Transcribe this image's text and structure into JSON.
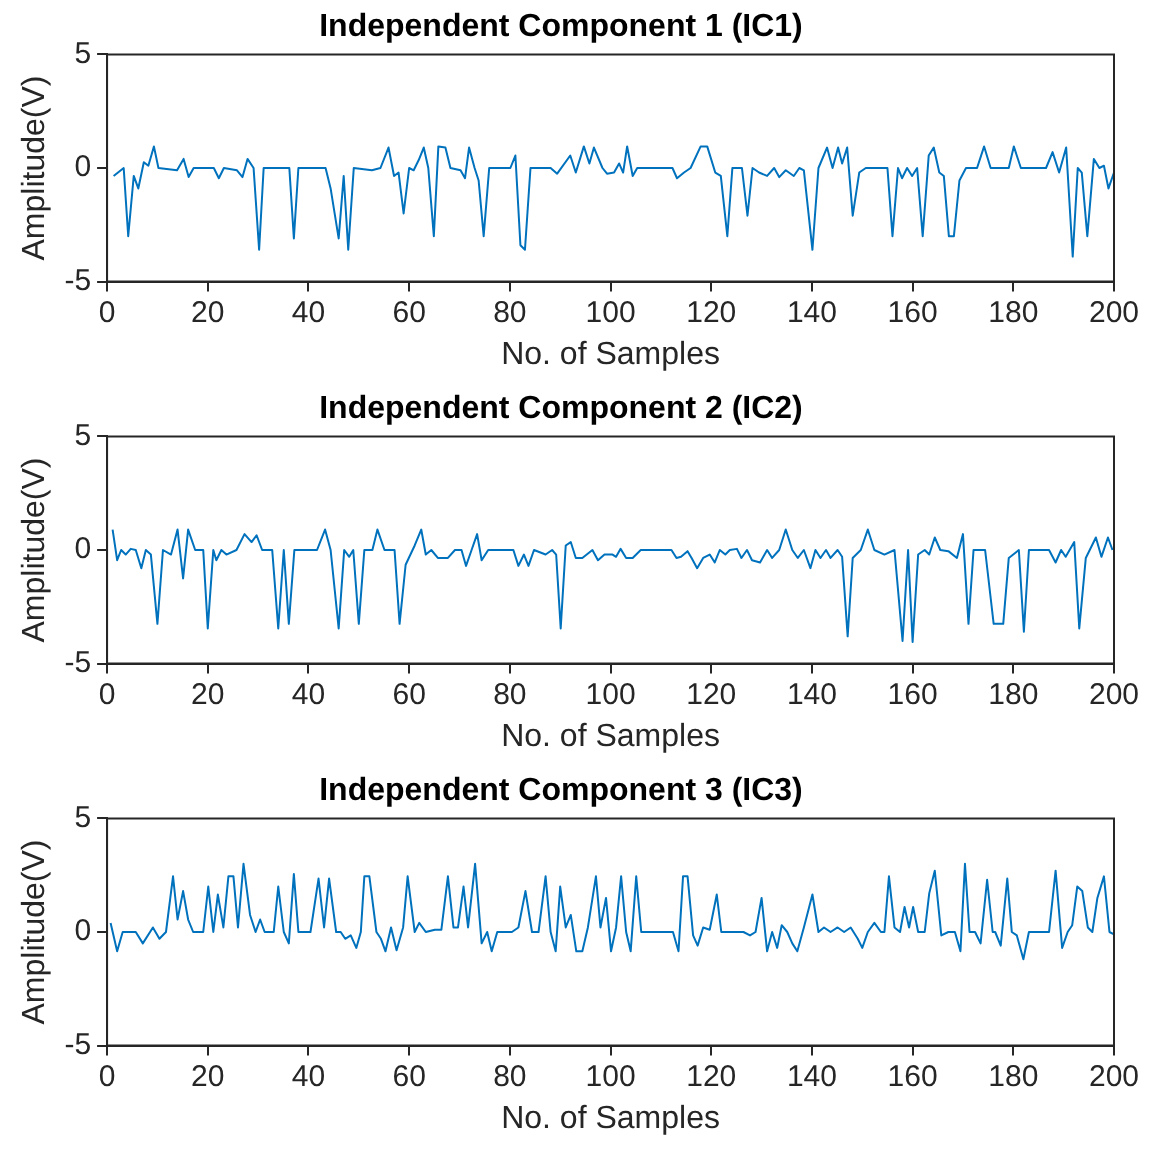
{
  "chart_data": [
    {
      "type": "line",
      "title": "Independent Component 1 (IC1)",
      "xlabel": "No. of Samples",
      "ylabel": "Amplitude(V)",
      "xlim": [
        0,
        200
      ],
      "xticks": [
        0,
        20,
        40,
        60,
        80,
        100,
        120,
        140,
        160,
        180,
        200
      ],
      "ylim": [
        -5,
        5
      ],
      "yticks": [
        -5,
        0,
        5
      ],
      "grid": false,
      "marker": "none",
      "line_style": "solid",
      "series": [
        {
          "color": "#0072bd",
          "x": [
            1.3,
            3.3,
            4.2,
            5.3,
            6.2,
            7.3,
            8.2,
            9.3,
            10.2,
            13.9,
            15.2,
            16.2,
            17.2,
            21.2,
            22.2,
            23.2,
            25.8,
            26.9,
            27.9,
            29.1,
            30.2,
            31.1,
            36.2,
            37.1,
            38,
            43.4,
            44.4,
            46,
            47,
            47.9,
            49,
            52.6,
            54.3,
            55.9,
            57,
            57.9,
            58.9,
            60,
            60.9,
            61.9,
            62.9,
            63.8,
            64.9,
            65.8,
            67.2,
            68.2,
            70.2,
            71.1,
            71.9,
            73,
            73.8,
            74.8,
            75.9,
            80.1,
            81.1,
            82.1,
            83,
            84.1,
            88.1,
            89.4,
            92,
            93.1,
            94.7,
            95.8,
            96.7,
            98.4,
            99.3,
            100.7,
            101.7,
            102.5,
            103.3,
            104.4,
            105.3,
            112.3,
            113.2,
            114.6,
            115.9,
            117.9,
            119.2,
            120.8,
            121.9,
            123.2,
            124.2,
            126.1,
            127.2,
            128.2,
            129.5,
            131.1,
            132.5,
            133.5,
            134.8,
            136.4,
            137.5,
            138.4,
            140.1,
            141.3,
            143,
            144.1,
            145.2,
            146,
            147,
            148.1,
            149.4,
            150.7,
            155,
            156,
            157.1,
            157.9,
            158.9,
            159.9,
            160.9,
            162,
            163.2,
            164.2,
            165.3,
            166.2,
            167.2,
            168.2,
            169.3,
            170.6,
            172.8,
            174.2,
            175.5,
            179.1,
            180.1,
            181.5,
            186.5,
            187.8,
            189.1,
            190.5,
            191.8,
            192.8,
            193.6,
            194.7,
            196,
            197.1,
            198,
            198.9,
            200
          ],
          "values": [
            -0.35,
            0,
            -3,
            -0.35,
            -0.9,
            0.25,
            0.1,
            0.95,
            0,
            -0.1,
            0.4,
            -0.4,
            0,
            0,
            -0.45,
            0,
            -0.1,
            -0.4,
            0.4,
            0,
            -3.6,
            0,
            0,
            -3.1,
            0,
            0,
            -0.9,
            -3.1,
            -0.35,
            -3.6,
            0,
            -0.1,
            0,
            0.9,
            -0.35,
            -0.2,
            -2,
            0,
            -0.1,
            0.35,
            0.9,
            0,
            -3,
            0.95,
            0.9,
            0,
            -0.1,
            -0.45,
            0.9,
            0,
            -0.55,
            -3,
            0,
            0,
            0.55,
            -3.4,
            -3.6,
            0,
            0,
            -0.25,
            0.55,
            -0.2,
            0.95,
            0.2,
            0.9,
            0,
            -0.25,
            -0.2,
            0.2,
            -0.2,
            0.95,
            -0.35,
            0,
            0,
            -0.45,
            -0.2,
            0,
            0.95,
            0.95,
            -0.2,
            -0.35,
            -3,
            0,
            0,
            -2.1,
            0,
            -0.2,
            -0.35,
            0,
            -0.4,
            -0.1,
            -0.35,
            0,
            -0.1,
            -3.6,
            0,
            0.9,
            0,
            0.9,
            0.2,
            0.9,
            -2.1,
            -0.2,
            0,
            0,
            -3,
            0,
            -0.45,
            0,
            -0.35,
            0,
            -3,
            0.55,
            0.9,
            -0.2,
            -0.35,
            -3,
            -3,
            -0.55,
            0,
            0,
            0.95,
            0,
            0,
            0.95,
            0,
            0,
            0.7,
            -0.2,
            0.9,
            -3.9,
            0,
            -0.2,
            -3,
            0.4,
            0,
            0.1,
            -0.9,
            -0.2
          ]
        }
      ]
    },
    {
      "type": "line",
      "title": "Independent Component 2 (IC2)",
      "xlabel": "No. of Samples",
      "ylabel": "Amplitude(V)",
      "xlim": [
        0,
        200
      ],
      "xticks": [
        0,
        20,
        40,
        60,
        80,
        100,
        120,
        140,
        160,
        180,
        200
      ],
      "ylim": [
        -5,
        5
      ],
      "yticks": [
        -5,
        0,
        5
      ],
      "grid": false,
      "marker": "none",
      "line_style": "solid",
      "series": [
        {
          "color": "#0072bd",
          "x": [
            1.1,
            2,
            2.8,
            3.7,
            4.7,
            5.7,
            6.8,
            7.7,
            8.7,
            10,
            11.1,
            12.7,
            14,
            15.1,
            16.1,
            17.5,
            19.1,
            20,
            21.1,
            21.7,
            22.7,
            23.7,
            25.7,
            27.3,
            28.7,
            29.7,
            30.8,
            32.8,
            34,
            35.1,
            36.1,
            37.2,
            41.7,
            43.3,
            44.4,
            46,
            47.1,
            48.1,
            48.9,
            50,
            51.1,
            52.7,
            53.7,
            55.1,
            57.1,
            58.1,
            59.3,
            61.1,
            62.4,
            63.3,
            64.4,
            65.7,
            67.7,
            69.1,
            70.4,
            71.3,
            72.4,
            73.5,
            74.4,
            75.7,
            80.7,
            81.7,
            82.8,
            83.7,
            84.8,
            87.1,
            88.4,
            89.2,
            90.1,
            91.1,
            92.1,
            93.1,
            94.4,
            96.4,
            97.5,
            98.8,
            100.4,
            101.1,
            102,
            103.1,
            104.4,
            106,
            112.1,
            113.1,
            114,
            115.3,
            116.1,
            117.2,
            118.4,
            119.7,
            120.7,
            121.7,
            122.8,
            123.7,
            125.1,
            126,
            127.1,
            128.1,
            129.7,
            131.1,
            132.1,
            133.5,
            134.8,
            136.1,
            137.2,
            138.4,
            139.7,
            140.7,
            141.7,
            142.8,
            143.7,
            145.1,
            146,
            147.1,
            148.1,
            149.7,
            151.1,
            152.4,
            154.4,
            156.4,
            158,
            159.1,
            160,
            161.1,
            162.4,
            163.3,
            164.4,
            165.5,
            167.1,
            168.8,
            170,
            171.1,
            172.1,
            174.4,
            176.1,
            178,
            179.1,
            181.1,
            182.1,
            183.1,
            187.1,
            188.4,
            189.5,
            190.4,
            192.1,
            193.1,
            194.4,
            196.4,
            197.5,
            198.8,
            199.7
          ],
          "values": [
            0.9,
            -0.45,
            0,
            -0.2,
            0.05,
            0,
            -0.8,
            0,
            -0.2,
            -3.25,
            0,
            -0.2,
            0.9,
            -1.25,
            0.9,
            0,
            0,
            -3.45,
            0,
            -0.45,
            0,
            -0.2,
            0,
            0.7,
            0.35,
            0.65,
            0,
            0,
            -3.45,
            0,
            -3.25,
            0,
            0,
            0.9,
            0,
            -3.45,
            0,
            -0.3,
            0,
            -3.25,
            0,
            0,
            0.9,
            0,
            0,
            -3.25,
            -0.65,
            0.2,
            0.9,
            -0.2,
            0,
            -0.35,
            -0.35,
            0,
            0,
            -0.7,
            0,
            0.7,
            -0.45,
            0,
            0,
            -0.7,
            -0.2,
            -0.7,
            0,
            -0.2,
            0,
            -0.2,
            -3.45,
            0.2,
            0.35,
            -0.35,
            -0.35,
            0,
            -0.45,
            -0.2,
            -0.2,
            -0.3,
            0.05,
            -0.35,
            -0.35,
            0,
            0,
            -0.35,
            -0.3,
            -0.05,
            -0.35,
            -0.8,
            -0.35,
            -0.2,
            -0.55,
            0,
            -0.2,
            0,
            0.05,
            -0.35,
            0,
            -0.45,
            -0.55,
            0,
            -0.35,
            0,
            0.9,
            0,
            -0.35,
            0,
            -0.8,
            0,
            -0.35,
            0,
            -0.35,
            0,
            -0.3,
            -3.8,
            -0.35,
            0,
            0.9,
            0,
            -0.2,
            0,
            -4,
            0,
            -4.05,
            -0.2,
            0,
            -0.2,
            0.55,
            0,
            -0.05,
            -0.35,
            0.7,
            -3.25,
            0,
            0,
            -3.25,
            -3.25,
            -0.35,
            0,
            -3.6,
            0,
            0,
            -0.55,
            0,
            -0.3,
            0.35,
            -3.45,
            -0.35,
            0.55,
            -0.3,
            0.55,
            0
          ]
        }
      ]
    },
    {
      "type": "line",
      "title": "Independent Component 3 (IC3)",
      "xlabel": "No. of Samples",
      "ylabel": "Amplitude(V)",
      "xlim": [
        0,
        200
      ],
      "xticks": [
        0,
        20,
        40,
        60,
        80,
        100,
        120,
        140,
        160,
        180,
        200
      ],
      "ylim": [
        -5,
        5
      ],
      "yticks": [
        -5,
        0,
        5
      ],
      "grid": false,
      "marker": "none",
      "line_style": "solid",
      "series": [
        {
          "color": "#0072bd",
          "x": [
            0.7,
            2,
            3.1,
            5.7,
            7.1,
            9.1,
            10.4,
            11.7,
            13.1,
            14,
            15.1,
            16.1,
            17.1,
            19.1,
            20.1,
            21.1,
            22,
            23.1,
            24.1,
            25.1,
            26,
            27.1,
            28.4,
            29.5,
            30.4,
            31.3,
            33.1,
            34,
            35.1,
            36.1,
            37.1,
            38,
            40.4,
            42,
            43.1,
            44.1,
            45.5,
            46.4,
            47.3,
            48.4,
            49.5,
            50.4,
            51.1,
            52.1,
            53.5,
            54.4,
            55.3,
            56.4,
            57.5,
            58.8,
            59.7,
            61.1,
            62,
            63.3,
            65.1,
            66.4,
            67.7,
            68.8,
            69.7,
            70.8,
            71.7,
            73.1,
            74.4,
            75.5,
            76.4,
            77.5,
            80.4,
            81.7,
            83.1,
            84.4,
            85.7,
            87.1,
            88.1,
            89.1,
            90,
            91.1,
            92.1,
            93.2,
            94.4,
            95.5,
            97.1,
            98,
            99.1,
            100.1,
            101.1,
            102.1,
            103.1,
            104,
            105.1,
            106.1,
            112.4,
            113.5,
            114.4,
            115.3,
            116.4,
            117.3,
            118.4,
            119.7,
            121.1,
            122,
            126.4,
            127.7,
            128.8,
            130,
            131.1,
            132.1,
            133.1,
            134,
            135.1,
            136.1,
            137.1,
            138.4,
            140.1,
            141.3,
            142.4,
            143.7,
            145.1,
            146.4,
            147.7,
            149.1,
            150,
            151.1,
            152.4,
            153.7,
            154.4,
            155.3,
            156.4,
            157.5,
            158.4,
            159.3,
            160.1,
            161.1,
            162.4,
            163.3,
            164.4,
            165.7,
            167.1,
            168.4,
            169.5,
            170.4,
            171.3,
            172.4,
            173.5,
            174.8,
            175.9,
            176.4,
            177.5,
            178.8,
            179.7,
            180.7,
            182,
            183.1,
            187.1,
            188.4,
            189.7,
            190.8,
            191.7,
            192.7,
            193.7,
            194.8,
            195.7,
            196.7,
            198,
            199.1,
            200
          ],
          "values": [
            0.4,
            -0.85,
            0,
            0,
            -0.5,
            0.2,
            -0.3,
            0,
            2.45,
            0.55,
            1.8,
            0.55,
            0,
            0,
            2,
            0,
            1.65,
            0.2,
            2.45,
            2.45,
            0.2,
            3,
            0.75,
            0,
            0.55,
            0,
            0,
            2,
            0,
            -0.5,
            2.55,
            0,
            0,
            2.35,
            0.2,
            2.35,
            0,
            0,
            -0.3,
            -0.15,
            -0.7,
            0,
            2.45,
            2.45,
            0,
            -0.3,
            -0.85,
            0.2,
            -0.8,
            0.2,
            2.45,
            0,
            0.4,
            0,
            0.1,
            0.1,
            2.45,
            0.2,
            0.2,
            2,
            0.2,
            3,
            -0.5,
            0,
            -0.85,
            0,
            0,
            0.2,
            1.8,
            0,
            0,
            2.45,
            0,
            -0.85,
            2,
            0.2,
            0.75,
            -0.85,
            -0.85,
            0.2,
            2.45,
            0.2,
            1.5,
            -0.85,
            0.2,
            2.45,
            0,
            -0.85,
            2.45,
            0,
            0,
            -0.85,
            2.45,
            2.45,
            -0.15,
            -0.6,
            0.2,
            0.1,
            1.65,
            0,
            0,
            -0.15,
            0,
            1.5,
            -0.85,
            0,
            -0.7,
            0.3,
            0,
            -0.5,
            -0.85,
            0.2,
            1.65,
            0,
            0.2,
            0,
            0.2,
            0,
            0.2,
            -0.3,
            -0.7,
            0,
            0.4,
            0,
            0,
            2.45,
            0.2,
            0,
            1.1,
            0.2,
            1.1,
            0,
            0,
            1.7,
            2.7,
            -0.15,
            0,
            0,
            -0.85,
            3,
            0,
            0,
            -0.5,
            2.3,
            0,
            0,
            -0.6,
            2.35,
            0,
            -0.15,
            -1.2,
            0,
            0,
            2.7,
            -0.7,
            0,
            0.3,
            2,
            1.8,
            0.2,
            0,
            1.5,
            2.45,
            0,
            -0.1
          ]
        }
      ]
    }
  ]
}
